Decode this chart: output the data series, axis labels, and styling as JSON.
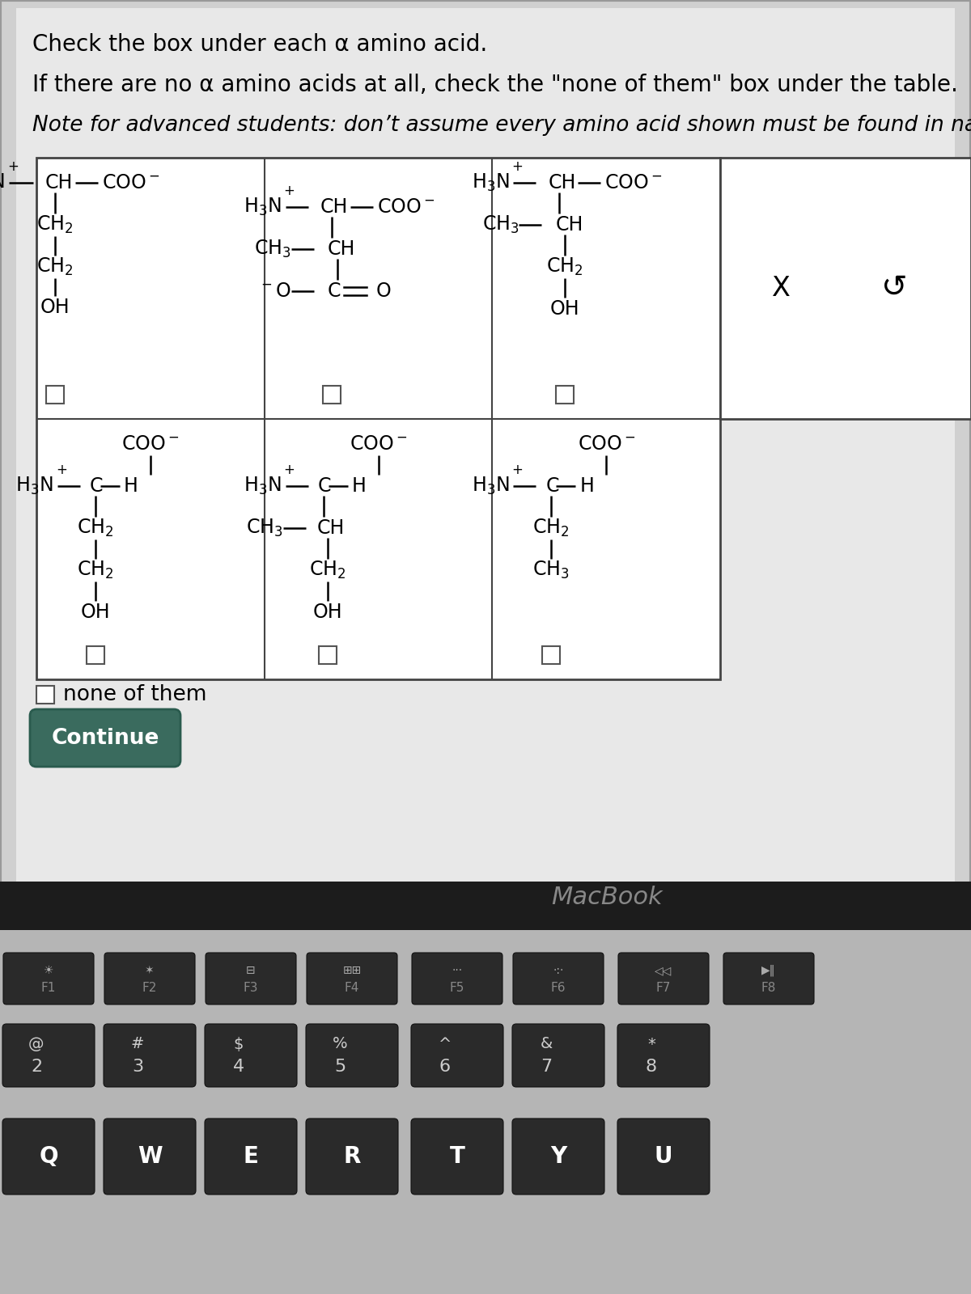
{
  "title_line1": "Check the box under each α amino acid.",
  "title_line2": "If there are no α amino acids at all, check the \"none of them\" box under the table.",
  "title_line3": "Note for advanced students: don’t assume every amino acid shown must be found in nature.",
  "screen_bg": "#d4d4d4",
  "content_bg": "#e8e8e8",
  "table_bg": "#ffffff",
  "table_border": "#555555",
  "laptop_dark": "#1a1a1a",
  "keyboard_bg": "#b8b8b8",
  "key_color": "#2a2a2a",
  "key_text": "#cccccc",
  "macbook_text": "#888888",
  "continue_btn": "#3a6b5e",
  "fkeys": [
    "F1",
    "F2",
    "F3",
    "F4",
    "F5",
    "F6",
    "F7",
    "F8"
  ],
  "numkeys_top": [
    "@",
    "#",
    "$",
    "%",
    "^",
    "&",
    "*"
  ],
  "numkeys_bot": [
    "2",
    "3",
    "4",
    "5",
    "6",
    "7",
    "8"
  ],
  "letkeys": [
    "Q",
    "W",
    "E",
    "R",
    "T",
    "Y",
    "U"
  ]
}
